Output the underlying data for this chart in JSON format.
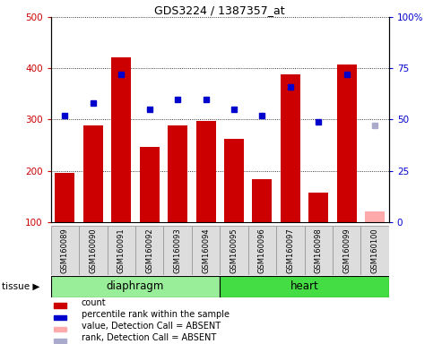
{
  "title": "GDS3224 / 1387357_at",
  "samples": [
    "GSM160089",
    "GSM160090",
    "GSM160091",
    "GSM160092",
    "GSM160093",
    "GSM160094",
    "GSM160095",
    "GSM160096",
    "GSM160097",
    "GSM160098",
    "GSM160099",
    "GSM160100"
  ],
  "counts": [
    195,
    288,
    422,
    247,
    289,
    297,
    262,
    184,
    388,
    158,
    408,
    null
  ],
  "count_absent": [
    null,
    null,
    null,
    null,
    null,
    null,
    null,
    null,
    null,
    null,
    null,
    120
  ],
  "percentile_ranks": [
    52,
    58,
    72,
    55,
    60,
    60,
    55,
    52,
    66,
    49,
    72,
    null
  ],
  "rank_absent": [
    null,
    null,
    null,
    null,
    null,
    null,
    null,
    null,
    null,
    null,
    null,
    47
  ],
  "bar_color": "#cc0000",
  "bar_absent_color": "#ffaaaa",
  "dot_color": "#0000cc",
  "dot_absent_color": "#aaaacc",
  "ylim_left": [
    100,
    500
  ],
  "ylim_right": [
    0,
    100
  ],
  "yticks_left": [
    100,
    200,
    300,
    400,
    500
  ],
  "yticks_right": [
    0,
    25,
    50,
    75,
    100
  ],
  "ytick_labels_right": [
    "0",
    "25",
    "50",
    "75",
    "100%"
  ],
  "groups": [
    {
      "label": "diaphragm",
      "start": 0,
      "end": 5,
      "color": "#99ee99"
    },
    {
      "label": "heart",
      "start": 6,
      "end": 11,
      "color": "#44dd44"
    }
  ],
  "tissue_label": "tissue",
  "xticklabel_bg": "#dddddd",
  "legend": [
    {
      "label": "count",
      "color": "#cc0000"
    },
    {
      "label": "percentile rank within the sample",
      "color": "#0000cc"
    },
    {
      "label": "value, Detection Call = ABSENT",
      "color": "#ffaaaa"
    },
    {
      "label": "rank, Detection Call = ABSENT",
      "color": "#aaaacc"
    }
  ]
}
